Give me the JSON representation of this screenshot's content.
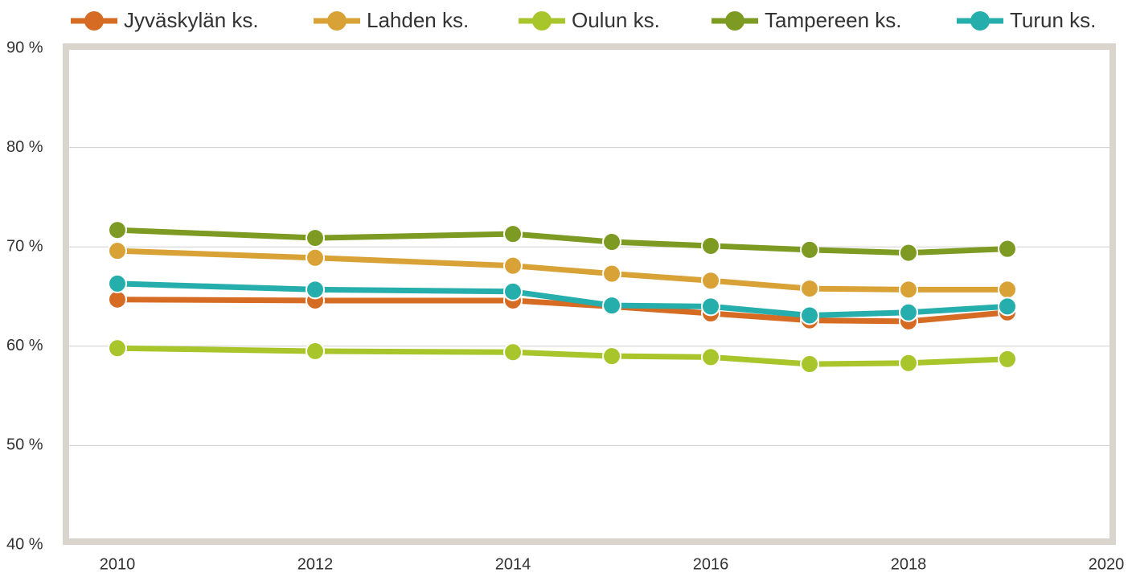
{
  "chart_data": {
    "type": "line",
    "x": [
      2010,
      2012,
      2014,
      2015,
      2016,
      2017,
      2018,
      2019
    ],
    "series": [
      {
        "name": "Jyväskylän ks.",
        "color": "#d66b23",
        "values": [
          64.7,
          64.6,
          64.6,
          64.0,
          63.3,
          62.6,
          62.5,
          63.4
        ]
      },
      {
        "name": "Lahden ks.",
        "color": "#d9a236",
        "values": [
          69.6,
          68.9,
          68.1,
          67.3,
          66.6,
          65.8,
          65.7,
          65.7
        ]
      },
      {
        "name": "Oulun ks.",
        "color": "#a8c62c",
        "values": [
          59.8,
          59.5,
          59.4,
          59.0,
          58.9,
          58.2,
          58.3,
          58.7
        ]
      },
      {
        "name": "Tampereen ks.",
        "color": "#7d9a22",
        "values": [
          71.7,
          70.9,
          71.3,
          70.5,
          70.1,
          69.7,
          69.4,
          69.8
        ]
      },
      {
        "name": "Turun ks.",
        "color": "#26aeac",
        "values": [
          66.3,
          65.7,
          65.5,
          64.1,
          64.0,
          63.1,
          63.4,
          64.0
        ]
      }
    ],
    "xlim": [
      2010,
      2020
    ],
    "xticks": [
      2010,
      2012,
      2014,
      2016,
      2018,
      2020
    ],
    "ylim": [
      40,
      90
    ],
    "yticks": [
      {
        "value": 40,
        "label": "40 %"
      },
      {
        "value": 50,
        "label": "50 %"
      },
      {
        "value": 60,
        "label": "60 %"
      },
      {
        "value": 70,
        "label": "70 %"
      },
      {
        "value": 80,
        "label": "80 %"
      },
      {
        "value": 90,
        "label": "90 %"
      }
    ],
    "grid": true,
    "legend": "top"
  }
}
